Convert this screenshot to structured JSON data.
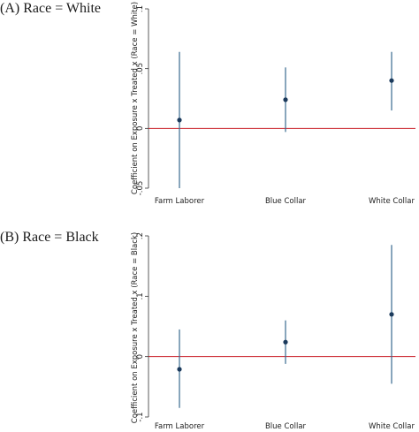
{
  "chart_data": [
    {
      "type": "scatter",
      "panel_label": "(A) Race = White",
      "ylabel": "Coefficient on Exposure x Treated x (Race = White)",
      "categories": [
        "Farm Laborer",
        "Blue Collar",
        "White Collar"
      ],
      "ylim": [
        -0.05,
        0.1
      ],
      "yticks": [
        -0.05,
        0,
        0.05,
        0.1
      ],
      "ytick_labels": [
        "-.05",
        "0",
        ".05",
        ".1"
      ],
      "series": [
        {
          "values": [
            0.007,
            0.024,
            0.04
          ],
          "ci_low": [
            -0.05,
            -0.003,
            0.015
          ],
          "ci_high": [
            0.064,
            0.051,
            0.064
          ]
        }
      ],
      "reference_line": 0,
      "colors": {
        "point": "#1b3a5c",
        "ci": "#3a6a8f",
        "reference": "#c9202a"
      }
    },
    {
      "type": "scatter",
      "panel_label": "(B) Race = Black",
      "ylabel": "Coefficient on Exposure x Treated x (Race = Black)",
      "categories": [
        "Farm Laborer",
        "Blue Collar",
        "White Collar"
      ],
      "ylim": [
        -0.1,
        0.2
      ],
      "yticks": [
        -0.1,
        0,
        0.1,
        0.2
      ],
      "ytick_labels": [
        "-.1",
        "0",
        ".1",
        ".2"
      ],
      "series": [
        {
          "values": [
            -0.021,
            0.024,
            0.07
          ],
          "ci_low": [
            -0.085,
            -0.012,
            -0.045
          ],
          "ci_high": [
            0.045,
            0.06,
            0.185
          ]
        }
      ],
      "reference_line": 0,
      "colors": {
        "point": "#1b3a5c",
        "ci": "#3a6a8f",
        "reference": "#c9202a"
      }
    }
  ]
}
